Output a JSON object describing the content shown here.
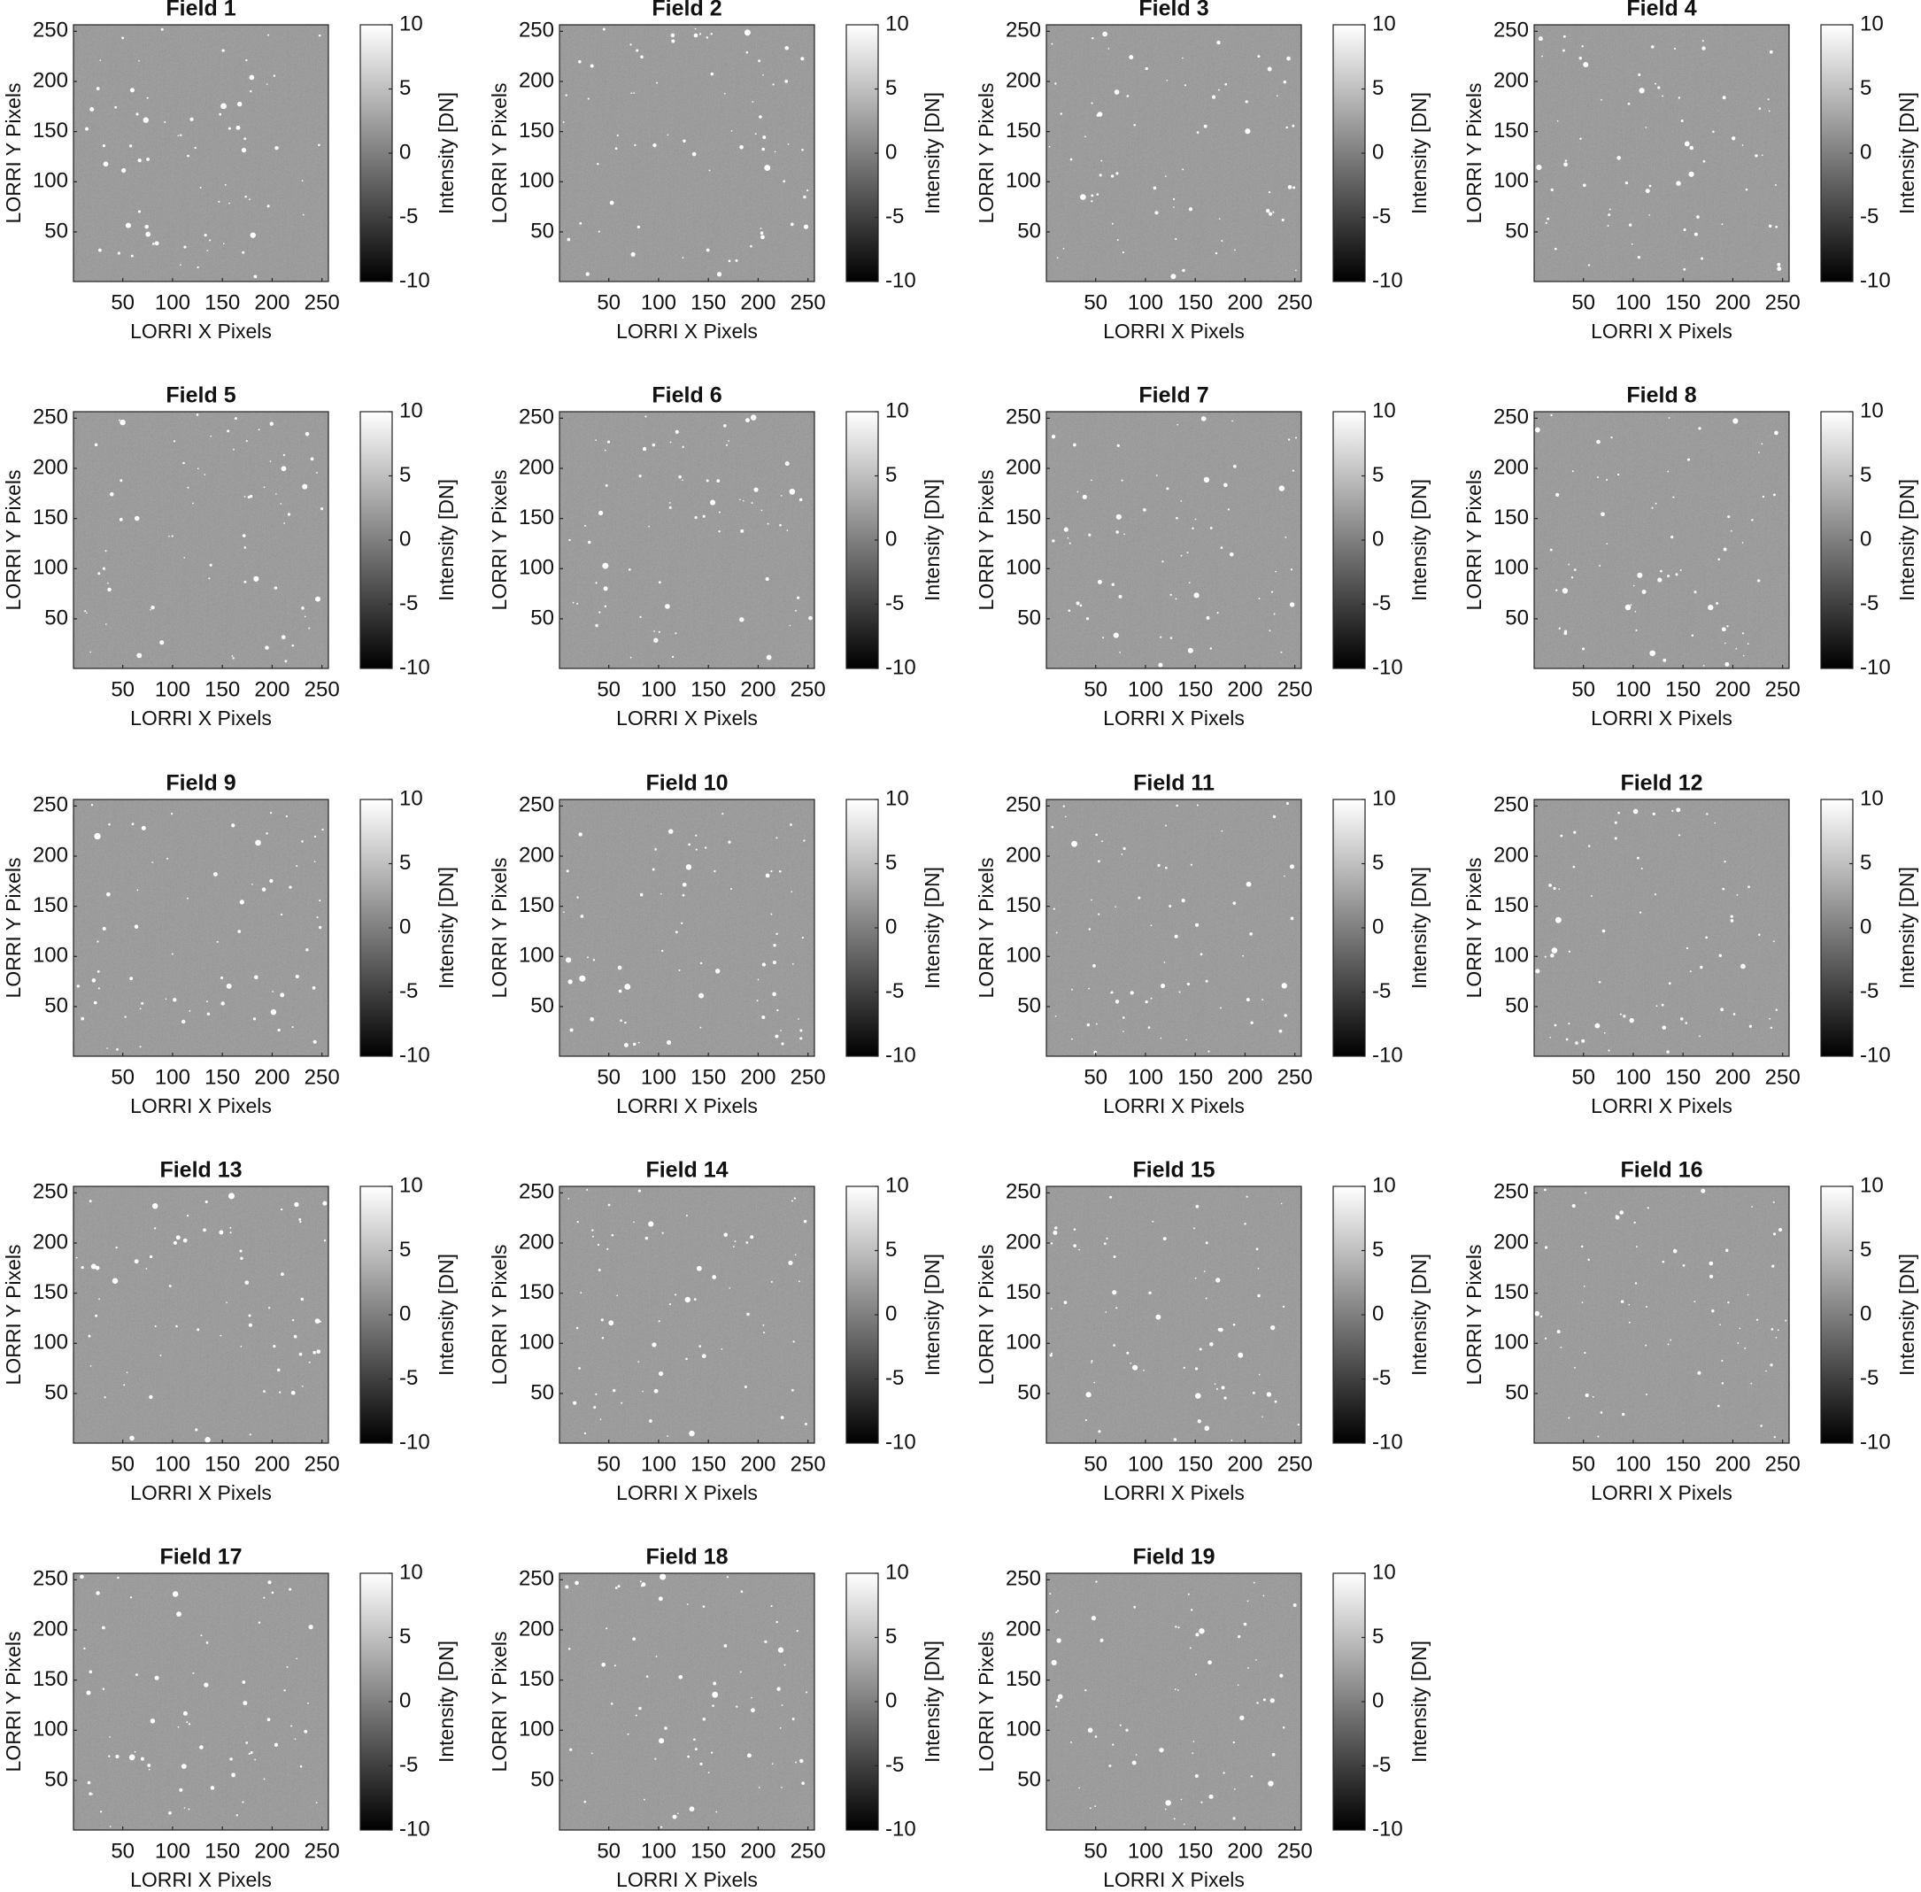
{
  "chart_data": [
    {
      "type": "image",
      "title": "Field 1",
      "xlabel": "LORRI X Pixels",
      "ylabel": "LORRI Y Pixels",
      "xlim": [
        0.5,
        256.5
      ],
      "ylim": [
        0.5,
        256.5
      ],
      "xticks": [
        50,
        100,
        150,
        200,
        250
      ],
      "yticks": [
        50,
        100,
        150,
        200,
        250
      ],
      "colorbar_label": "Intensity [DN]",
      "clim": [
        -10,
        10
      ],
      "cticks": [
        -10,
        -5,
        0,
        5,
        10
      ]
    },
    {
      "type": "image",
      "title": "Field 2",
      "xlabel": "LORRI X Pixels",
      "ylabel": "LORRI Y Pixels",
      "xlim": [
        0.5,
        256.5
      ],
      "ylim": [
        0.5,
        256.5
      ],
      "xticks": [
        50,
        100,
        150,
        200,
        250
      ],
      "yticks": [
        50,
        100,
        150,
        200,
        250
      ],
      "colorbar_label": "Intensity [DN]",
      "clim": [
        -10,
        10
      ],
      "cticks": [
        -10,
        -5,
        0,
        5,
        10
      ]
    },
    {
      "type": "image",
      "title": "Field 3",
      "xlabel": "LORRI X Pixels",
      "ylabel": "LORRI Y Pixels",
      "xlim": [
        0.5,
        256.5
      ],
      "ylim": [
        0.5,
        256.5
      ],
      "xticks": [
        50,
        100,
        150,
        200,
        250
      ],
      "yticks": [
        50,
        100,
        150,
        200,
        250
      ],
      "colorbar_label": "Intensity [DN]",
      "clim": [
        -10,
        10
      ],
      "cticks": [
        -10,
        -5,
        0,
        5,
        10
      ]
    },
    {
      "type": "image",
      "title": "Field 4",
      "xlabel": "LORRI X Pixels",
      "ylabel": "LORRI Y Pixels",
      "xlim": [
        0.5,
        256.5
      ],
      "ylim": [
        0.5,
        256.5
      ],
      "xticks": [
        50,
        100,
        150,
        200,
        250
      ],
      "yticks": [
        50,
        100,
        150,
        200,
        250
      ],
      "colorbar_label": "Intensity [DN]",
      "clim": [
        -10,
        10
      ],
      "cticks": [
        -10,
        -5,
        0,
        5,
        10
      ]
    },
    {
      "type": "image",
      "title": "Field 5",
      "xlabel": "LORRI X Pixels",
      "ylabel": "LORRI Y Pixels",
      "xlim": [
        0.5,
        256.5
      ],
      "ylim": [
        0.5,
        256.5
      ],
      "xticks": [
        50,
        100,
        150,
        200,
        250
      ],
      "yticks": [
        50,
        100,
        150,
        200,
        250
      ],
      "colorbar_label": "Intensity [DN]",
      "clim": [
        -10,
        10
      ],
      "cticks": [
        -10,
        -5,
        0,
        5,
        10
      ]
    },
    {
      "type": "image",
      "title": "Field 6",
      "xlabel": "LORRI X Pixels",
      "ylabel": "LORRI Y Pixels",
      "xlim": [
        0.5,
        256.5
      ],
      "ylim": [
        0.5,
        256.5
      ],
      "xticks": [
        50,
        100,
        150,
        200,
        250
      ],
      "yticks": [
        50,
        100,
        150,
        200,
        250
      ],
      "colorbar_label": "Intensity [DN]",
      "clim": [
        -10,
        10
      ],
      "cticks": [
        -10,
        -5,
        0,
        5,
        10
      ]
    },
    {
      "type": "image",
      "title": "Field 7",
      "xlabel": "LORRI X Pixels",
      "ylabel": "LORRI Y Pixels",
      "xlim": [
        0.5,
        256.5
      ],
      "ylim": [
        0.5,
        256.5
      ],
      "xticks": [
        50,
        100,
        150,
        200,
        250
      ],
      "yticks": [
        50,
        100,
        150,
        200,
        250
      ],
      "colorbar_label": "Intensity [DN]",
      "clim": [
        -10,
        10
      ],
      "cticks": [
        -10,
        -5,
        0,
        5,
        10
      ]
    },
    {
      "type": "image",
      "title": "Field 8",
      "xlabel": "LORRI X Pixels",
      "ylabel": "LORRI Y Pixels",
      "xlim": [
        0.5,
        256.5
      ],
      "ylim": [
        0.5,
        256.5
      ],
      "xticks": [
        50,
        100,
        150,
        200,
        250
      ],
      "yticks": [
        50,
        100,
        150,
        200,
        250
      ],
      "colorbar_label": "Intensity [DN]",
      "clim": [
        -10,
        10
      ],
      "cticks": [
        -10,
        -5,
        0,
        5,
        10
      ]
    },
    {
      "type": "image",
      "title": "Field 9",
      "xlabel": "LORRI X Pixels",
      "ylabel": "LORRI Y Pixels",
      "xlim": [
        0.5,
        256.5
      ],
      "ylim": [
        0.5,
        256.5
      ],
      "xticks": [
        50,
        100,
        150,
        200,
        250
      ],
      "yticks": [
        50,
        100,
        150,
        200,
        250
      ],
      "colorbar_label": "Intensity [DN]",
      "clim": [
        -10,
        10
      ],
      "cticks": [
        -10,
        -5,
        0,
        5,
        10
      ]
    },
    {
      "type": "image",
      "title": "Field 10",
      "xlabel": "LORRI X Pixels",
      "ylabel": "LORRI Y Pixels",
      "xlim": [
        0.5,
        256.5
      ],
      "ylim": [
        0.5,
        256.5
      ],
      "xticks": [
        50,
        100,
        150,
        200,
        250
      ],
      "yticks": [
        50,
        100,
        150,
        200,
        250
      ],
      "colorbar_label": "Intensity [DN]",
      "clim": [
        -10,
        10
      ],
      "cticks": [
        -10,
        -5,
        0,
        5,
        10
      ]
    },
    {
      "type": "image",
      "title": "Field 11",
      "xlabel": "LORRI X Pixels",
      "ylabel": "LORRI Y Pixels",
      "xlim": [
        0.5,
        256.5
      ],
      "ylim": [
        0.5,
        256.5
      ],
      "xticks": [
        50,
        100,
        150,
        200,
        250
      ],
      "yticks": [
        50,
        100,
        150,
        200,
        250
      ],
      "colorbar_label": "Intensity [DN]",
      "clim": [
        -10,
        10
      ],
      "cticks": [
        -10,
        -5,
        0,
        5,
        10
      ]
    },
    {
      "type": "image",
      "title": "Field 12",
      "xlabel": "LORRI X Pixels",
      "ylabel": "LORRI Y Pixels",
      "xlim": [
        0.5,
        256.5
      ],
      "ylim": [
        0.5,
        256.5
      ],
      "xticks": [
        50,
        100,
        150,
        200,
        250
      ],
      "yticks": [
        50,
        100,
        150,
        200,
        250
      ],
      "colorbar_label": "Intensity [DN]",
      "clim": [
        -10,
        10
      ],
      "cticks": [
        -10,
        -5,
        0,
        5,
        10
      ]
    },
    {
      "type": "image",
      "title": "Field 13",
      "xlabel": "LORRI X Pixels",
      "ylabel": "LORRI Y Pixels",
      "xlim": [
        0.5,
        256.5
      ],
      "ylim": [
        0.5,
        256.5
      ],
      "xticks": [
        50,
        100,
        150,
        200,
        250
      ],
      "yticks": [
        50,
        100,
        150,
        200,
        250
      ],
      "colorbar_label": "Intensity [DN]",
      "clim": [
        -10,
        10
      ],
      "cticks": [
        -10,
        -5,
        0,
        5,
        10
      ]
    },
    {
      "type": "image",
      "title": "Field 14",
      "xlabel": "LORRI X Pixels",
      "ylabel": "LORRI Y Pixels",
      "xlim": [
        0.5,
        256.5
      ],
      "ylim": [
        0.5,
        256.5
      ],
      "xticks": [
        50,
        100,
        150,
        200,
        250
      ],
      "yticks": [
        50,
        100,
        150,
        200,
        250
      ],
      "colorbar_label": "Intensity [DN]",
      "clim": [
        -10,
        10
      ],
      "cticks": [
        -10,
        -5,
        0,
        5,
        10
      ]
    },
    {
      "type": "image",
      "title": "Field 15",
      "xlabel": "LORRI X Pixels",
      "ylabel": "LORRI Y Pixels",
      "xlim": [
        0.5,
        256.5
      ],
      "ylim": [
        0.5,
        256.5
      ],
      "xticks": [
        50,
        100,
        150,
        200,
        250
      ],
      "yticks": [
        50,
        100,
        150,
        200,
        250
      ],
      "colorbar_label": "Intensity [DN]",
      "clim": [
        -10,
        10
      ],
      "cticks": [
        -10,
        -5,
        0,
        5,
        10
      ]
    },
    {
      "type": "image",
      "title": "Field 16",
      "xlabel": "LORRI X Pixels",
      "ylabel": "LORRI Y Pixels",
      "xlim": [
        0.5,
        256.5
      ],
      "ylim": [
        0.5,
        256.5
      ],
      "xticks": [
        50,
        100,
        150,
        200,
        250
      ],
      "yticks": [
        50,
        100,
        150,
        200,
        250
      ],
      "colorbar_label": "Intensity [DN]",
      "clim": [
        -10,
        10
      ],
      "cticks": [
        -10,
        -5,
        0,
        5,
        10
      ]
    },
    {
      "type": "image",
      "title": "Field 17",
      "xlabel": "LORRI X Pixels",
      "ylabel": "LORRI Y Pixels",
      "xlim": [
        0.5,
        256.5
      ],
      "ylim": [
        0.5,
        256.5
      ],
      "xticks": [
        50,
        100,
        150,
        200,
        250
      ],
      "yticks": [
        50,
        100,
        150,
        200,
        250
      ],
      "colorbar_label": "Intensity [DN]",
      "clim": [
        -10,
        10
      ],
      "cticks": [
        -10,
        -5,
        0,
        5,
        10
      ]
    },
    {
      "type": "image",
      "title": "Field 18",
      "xlabel": "LORRI X Pixels",
      "ylabel": "LORRI Y Pixels",
      "xlim": [
        0.5,
        256.5
      ],
      "ylim": [
        0.5,
        256.5
      ],
      "xticks": [
        50,
        100,
        150,
        200,
        250
      ],
      "yticks": [
        50,
        100,
        150,
        200,
        250
      ],
      "colorbar_label": "Intensity [DN]",
      "clim": [
        -10,
        10
      ],
      "cticks": [
        -10,
        -5,
        0,
        5,
        10
      ]
    },
    {
      "type": "image",
      "title": "Field 19",
      "xlabel": "LORRI X Pixels",
      "ylabel": "LORRI Y Pixels",
      "xlim": [
        0.5,
        256.5
      ],
      "ylim": [
        0.5,
        256.5
      ],
      "xticks": [
        50,
        100,
        150,
        200,
        250
      ],
      "yticks": [
        50,
        100,
        150,
        200,
        250
      ],
      "colorbar_label": "Intensity [DN]",
      "clim": [
        -10,
        10
      ],
      "cticks": [
        -10,
        -5,
        0,
        5,
        10
      ]
    }
  ]
}
